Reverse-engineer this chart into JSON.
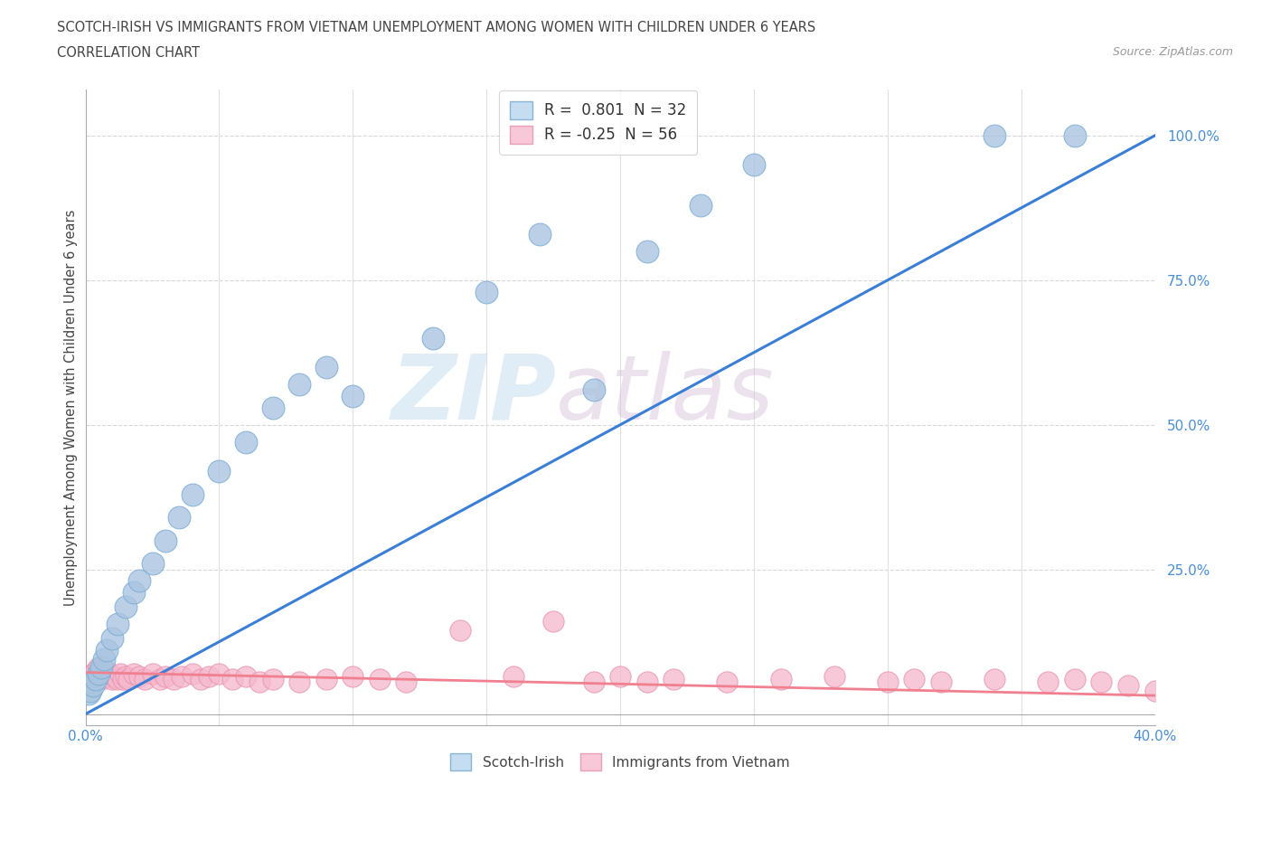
{
  "title_line1": "SCOTCH-IRISH VS IMMIGRANTS FROM VIETNAM UNEMPLOYMENT AMONG WOMEN WITH CHILDREN UNDER 6 YEARS",
  "title_line2": "CORRELATION CHART",
  "source": "Source: ZipAtlas.com",
  "ylabel": "Unemployment Among Women with Children Under 6 years",
  "xmin": 0.0,
  "xmax": 0.4,
  "ymin": -0.02,
  "ymax": 1.08,
  "background_color": "#ffffff",
  "scotch_irish_color": "#aac4e0",
  "scotch_irish_edge_color": "#7aadd4",
  "vietnam_color": "#f5b8cc",
  "vietnam_edge_color": "#e890b0",
  "scotch_irish_line_color": "#3a7fd5",
  "vietnam_line_color": "#f08090",
  "R_scotch": 0.801,
  "N_scotch": 32,
  "R_vietnam": -0.25,
  "N_vietnam": 56,
  "watermark_zip": "ZIP",
  "watermark_atlas": "atlas",
  "scotch_x": [
    0.001,
    0.002,
    0.003,
    0.004,
    0.005,
    0.006,
    0.007,
    0.008,
    0.01,
    0.012,
    0.015,
    0.018,
    0.02,
    0.025,
    0.03,
    0.035,
    0.04,
    0.05,
    0.06,
    0.07,
    0.08,
    0.09,
    0.1,
    0.13,
    0.15,
    0.17,
    0.19,
    0.21,
    0.23,
    0.25,
    0.34,
    0.37
  ],
  "scotch_y": [
    0.035,
    0.04,
    0.05,
    0.06,
    0.07,
    0.08,
    0.095,
    0.11,
    0.13,
    0.155,
    0.185,
    0.21,
    0.23,
    0.26,
    0.3,
    0.34,
    0.38,
    0.42,
    0.47,
    0.53,
    0.57,
    0.6,
    0.55,
    0.65,
    0.73,
    0.83,
    0.56,
    0.8,
    0.88,
    0.95,
    1.0,
    1.0
  ],
  "vietnam_x": [
    0.001,
    0.002,
    0.003,
    0.004,
    0.005,
    0.006,
    0.007,
    0.008,
    0.009,
    0.01,
    0.011,
    0.012,
    0.013,
    0.014,
    0.015,
    0.016,
    0.018,
    0.02,
    0.022,
    0.025,
    0.028,
    0.03,
    0.033,
    0.036,
    0.04,
    0.043,
    0.046,
    0.05,
    0.055,
    0.06,
    0.065,
    0.07,
    0.08,
    0.09,
    0.1,
    0.11,
    0.12,
    0.14,
    0.16,
    0.175,
    0.19,
    0.2,
    0.21,
    0.22,
    0.24,
    0.26,
    0.28,
    0.3,
    0.31,
    0.32,
    0.34,
    0.36,
    0.37,
    0.38,
    0.39,
    0.4
  ],
  "vietnam_y": [
    0.055,
    0.065,
    0.07,
    0.075,
    0.08,
    0.06,
    0.07,
    0.075,
    0.065,
    0.06,
    0.065,
    0.06,
    0.07,
    0.06,
    0.065,
    0.06,
    0.07,
    0.065,
    0.06,
    0.07,
    0.06,
    0.065,
    0.06,
    0.065,
    0.07,
    0.06,
    0.065,
    0.07,
    0.06,
    0.065,
    0.055,
    0.06,
    0.055,
    0.06,
    0.065,
    0.06,
    0.055,
    0.145,
    0.065,
    0.16,
    0.055,
    0.065,
    0.055,
    0.06,
    0.055,
    0.06,
    0.065,
    0.055,
    0.06,
    0.055,
    0.06,
    0.055,
    0.06,
    0.055,
    0.05,
    0.04
  ],
  "scotch_line_x0": 0.0,
  "scotch_line_x1": 0.4,
  "scotch_line_y0": 0.0,
  "scotch_line_y1": 1.0,
  "vietnam_line_x0": 0.0,
  "vietnam_line_x1": 0.4,
  "vietnam_line_y0": 0.072,
  "vietnam_line_y1": 0.032
}
